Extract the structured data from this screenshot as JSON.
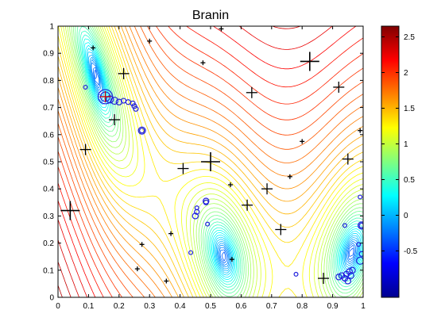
{
  "chart_data": {
    "type": "contour",
    "title": "Branin",
    "xlabel": "",
    "ylabel": "",
    "xlim": [
      0,
      1
    ],
    "ylim": [
      0,
      1
    ],
    "x_ticks": [
      "0",
      "0.1",
      "0.2",
      "0.3",
      "0.4",
      "0.5",
      "0.6",
      "0.7",
      "0.8",
      "0.9",
      "1"
    ],
    "y_ticks": [
      "0",
      "0.1",
      "0.2",
      "0.3",
      "0.4",
      "0.5",
      "0.6",
      "0.7",
      "0.8",
      "0.9",
      "1"
    ],
    "colorbar": {
      "colormap": "jet",
      "range": [
        -1.15,
        2.65
      ],
      "tick_values": [
        -0.5,
        0,
        0.5,
        1,
        1.5,
        2,
        2.5
      ],
      "tick_labels": [
        "-0.5",
        "0",
        "0.5",
        "1",
        "1.5",
        "2",
        "2.5"
      ]
    },
    "plus_markers": [
      {
        "x": 0.04,
        "y": 0.32,
        "size": "large"
      },
      {
        "x": 0.09,
        "y": 0.545,
        "size": "medium"
      },
      {
        "x": 0.115,
        "y": 0.92,
        "size": "small"
      },
      {
        "x": 0.155,
        "y": 0.74,
        "size": "medium",
        "color": "#cc0000"
      },
      {
        "x": 0.185,
        "y": 0.655,
        "size": "medium"
      },
      {
        "x": 0.215,
        "y": 0.825,
        "size": "medium"
      },
      {
        "x": 0.26,
        "y": 0.105,
        "size": "small"
      },
      {
        "x": 0.275,
        "y": 0.195,
        "size": "small"
      },
      {
        "x": 0.3,
        "y": 0.945,
        "size": "small"
      },
      {
        "x": 0.355,
        "y": 0.06,
        "size": "small"
      },
      {
        "x": 0.37,
        "y": 0.235,
        "size": "small"
      },
      {
        "x": 0.41,
        "y": 0.475,
        "size": "medium"
      },
      {
        "x": 0.475,
        "y": 0.865,
        "size": "small"
      },
      {
        "x": 0.5,
        "y": 0.5,
        "size": "large"
      },
      {
        "x": 0.535,
        "y": 0.99,
        "size": "small"
      },
      {
        "x": 0.565,
        "y": 0.415,
        "size": "small"
      },
      {
        "x": 0.57,
        "y": 0.14,
        "size": "small"
      },
      {
        "x": 0.62,
        "y": 0.34,
        "size": "medium"
      },
      {
        "x": 0.635,
        "y": 0.755,
        "size": "medium"
      },
      {
        "x": 0.685,
        "y": 0.4,
        "size": "medium"
      },
      {
        "x": 0.73,
        "y": 0.25,
        "size": "medium"
      },
      {
        "x": 0.76,
        "y": 0.445,
        "size": "small"
      },
      {
        "x": 0.8,
        "y": 0.575,
        "size": "small"
      },
      {
        "x": 0.825,
        "y": 0.87,
        "size": "large"
      },
      {
        "x": 0.87,
        "y": 0.07,
        "size": "medium"
      },
      {
        "x": 0.92,
        "y": 0.775,
        "size": "medium"
      },
      {
        "x": 0.95,
        "y": 0.51,
        "size": "medium"
      },
      {
        "x": 0.99,
        "y": 0.615,
        "size": "small"
      }
    ],
    "circle_markers": [
      {
        "x": 0.155,
        "y": 0.74,
        "r": 3
      },
      {
        "x": 0.155,
        "y": 0.74,
        "r": 2
      },
      {
        "x": 0.17,
        "y": 0.73,
        "r": 1.5
      },
      {
        "x": 0.185,
        "y": 0.725,
        "r": 1.5
      },
      {
        "x": 0.2,
        "y": 0.72,
        "r": 1.2
      },
      {
        "x": 0.215,
        "y": 0.725,
        "r": 1
      },
      {
        "x": 0.23,
        "y": 0.72,
        "r": 1
      },
      {
        "x": 0.245,
        "y": 0.715,
        "r": 1
      },
      {
        "x": 0.25,
        "y": 0.705,
        "r": 1
      },
      {
        "x": 0.255,
        "y": 0.695,
        "r": 1
      },
      {
        "x": 0.09,
        "y": 0.775,
        "r": 0.8
      },
      {
        "x": 0.275,
        "y": 0.615,
        "r": 1.5
      },
      {
        "x": 0.275,
        "y": 0.615,
        "r": 1
      },
      {
        "x": 0.45,
        "y": 0.3,
        "r": 1.2
      },
      {
        "x": 0.455,
        "y": 0.315,
        "r": 1
      },
      {
        "x": 0.455,
        "y": 0.33,
        "r": 0.8
      },
      {
        "x": 0.485,
        "y": 0.355,
        "r": 1.2
      },
      {
        "x": 0.485,
        "y": 0.35,
        "r": 1
      },
      {
        "x": 0.49,
        "y": 0.27,
        "r": 0.8
      },
      {
        "x": 0.435,
        "y": 0.165,
        "r": 0.8
      },
      {
        "x": 0.78,
        "y": 0.085,
        "r": 0.8
      },
      {
        "x": 0.92,
        "y": 0.075,
        "r": 1.2
      },
      {
        "x": 0.93,
        "y": 0.08,
        "r": 1.2
      },
      {
        "x": 0.94,
        "y": 0.07,
        "r": 1.2
      },
      {
        "x": 0.945,
        "y": 0.085,
        "r": 1.2
      },
      {
        "x": 0.95,
        "y": 0.06,
        "r": 1.2
      },
      {
        "x": 0.955,
        "y": 0.095,
        "r": 1.2
      },
      {
        "x": 0.96,
        "y": 0.08,
        "r": 1.2
      },
      {
        "x": 0.965,
        "y": 0.1,
        "r": 1.2
      },
      {
        "x": 0.94,
        "y": 0.265,
        "r": 0.8
      },
      {
        "x": 0.995,
        "y": 0.265,
        "r": 1.5
      },
      {
        "x": 0.995,
        "y": 0.265,
        "r": 1
      },
      {
        "x": 0.99,
        "y": 0.135,
        "r": 1.5
      },
      {
        "x": 0.995,
        "y": 0.16,
        "r": 1
      },
      {
        "x": 0.985,
        "y": 0.195,
        "r": 0.8
      },
      {
        "x": 0.99,
        "y": 0.37,
        "r": 0.8
      }
    ],
    "colors": {
      "plus": "#000000",
      "circle": "#1f1fdc",
      "highlight_circle": "#cc0000"
    }
  }
}
